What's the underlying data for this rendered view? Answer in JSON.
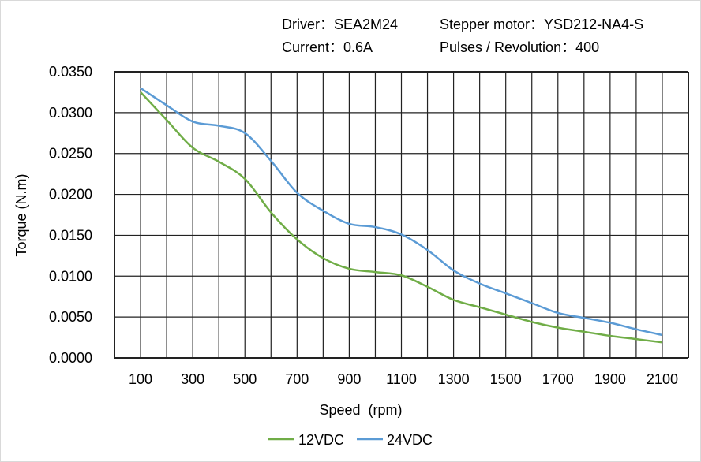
{
  "header": {
    "driver": "Driver：SEA2M24",
    "motor": "Stepper motor：YSD212-NA4-S",
    "current": "Current：0.6A",
    "pulses": "Pulses / Revolution：400"
  },
  "chart_data": {
    "type": "line",
    "title": "",
    "xlabel": "Speed  (rpm)",
    "ylabel": "Torque (N.m)",
    "x": [
      100,
      200,
      300,
      400,
      500,
      600,
      700,
      800,
      900,
      1000,
      1100,
      1200,
      1300,
      1400,
      1500,
      1600,
      1700,
      1800,
      1900,
      2000,
      2100
    ],
    "xlim": [
      0,
      2200
    ],
    "ylim": [
      0,
      0.035
    ],
    "xticks": [
      "100",
      "300",
      "500",
      "700",
      "900",
      "1100",
      "1300",
      "1500",
      "1700",
      "1900",
      "2100"
    ],
    "xtick_values": [
      100,
      300,
      500,
      700,
      900,
      1100,
      1300,
      1500,
      1700,
      1900,
      2100
    ],
    "yticks": [
      "0.0000",
      "0.0050",
      "0.0100",
      "0.0150",
      "0.0200",
      "0.0250",
      "0.0300",
      "0.0350"
    ],
    "ytick_values": [
      0,
      0.005,
      0.01,
      0.015,
      0.02,
      0.025,
      0.03,
      0.035
    ],
    "grid": true,
    "legend_position": "bottom",
    "series": [
      {
        "name": "12VDC",
        "color": "#70ad47",
        "values": [
          0.0325,
          0.0291,
          0.0257,
          0.024,
          0.0219,
          0.0178,
          0.0145,
          0.0122,
          0.0109,
          0.0105,
          0.0101,
          0.0087,
          0.0071,
          0.0062,
          0.0053,
          0.0044,
          0.0037,
          0.0032,
          0.0027,
          0.0023,
          0.0019
        ]
      },
      {
        "name": "24VDC",
        "color": "#5b9bd5",
        "values": [
          0.033,
          0.0309,
          0.0289,
          0.0284,
          0.0275,
          0.0241,
          0.0202,
          0.018,
          0.0164,
          0.016,
          0.0151,
          0.0132,
          0.0107,
          0.0091,
          0.0079,
          0.0067,
          0.0055,
          0.0049,
          0.0043,
          0.0035,
          0.0028
        ]
      }
    ]
  }
}
